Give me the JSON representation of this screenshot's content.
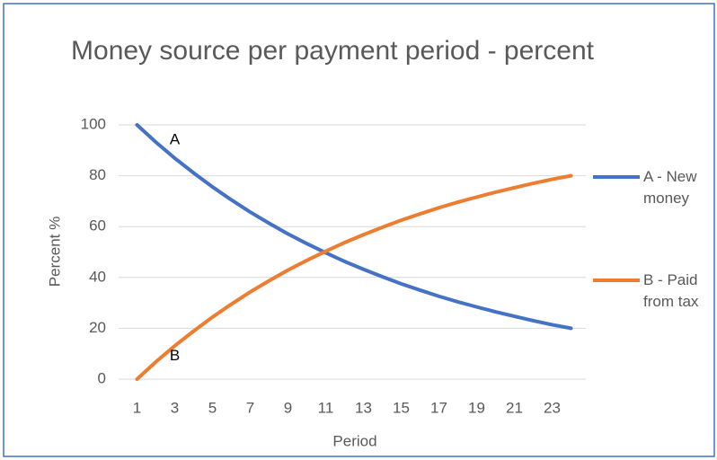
{
  "chart_data": {
    "type": "line",
    "title": "Money source per payment period - percent",
    "x_label": "Period",
    "y_label": "Percent %",
    "categories": [
      1,
      null,
      3,
      null,
      5,
      null,
      7,
      null,
      9,
      null,
      11,
      null,
      13,
      null,
      15,
      null,
      17,
      null,
      19,
      null,
      21,
      null,
      23,
      null
    ],
    "series": [
      {
        "name": "A - New money",
        "color": "#4472c4",
        "values": [
          100,
          93.2,
          86.9,
          81.1,
          75.6,
          70.5,
          65.7,
          61.3,
          57.1,
          53.3,
          49.7,
          46.3,
          43.2,
          40.3,
          37.5,
          35.0,
          32.6,
          30.4,
          28.4,
          26.5,
          24.7,
          23.0,
          21.4,
          20.0
        ]
      },
      {
        "name": "B - Paid from tax",
        "color": "#ed7d31",
        "values": [
          0,
          6.8,
          13.1,
          18.9,
          24.4,
          29.5,
          34.3,
          38.7,
          42.9,
          46.7,
          50.3,
          53.7,
          56.8,
          59.7,
          62.5,
          65.0,
          67.4,
          69.6,
          71.6,
          73.5,
          75.3,
          77.0,
          78.6,
          80.0
        ]
      }
    ],
    "annotations": [
      {
        "text": "A",
        "x": 3,
        "y": 94
      },
      {
        "text": "B",
        "x": 3,
        "y": 9
      }
    ],
    "ylim": [
      0,
      100
    ],
    "yticks": [
      0,
      20,
      40,
      60,
      80,
      100
    ],
    "grid": true,
    "legend": "right"
  }
}
